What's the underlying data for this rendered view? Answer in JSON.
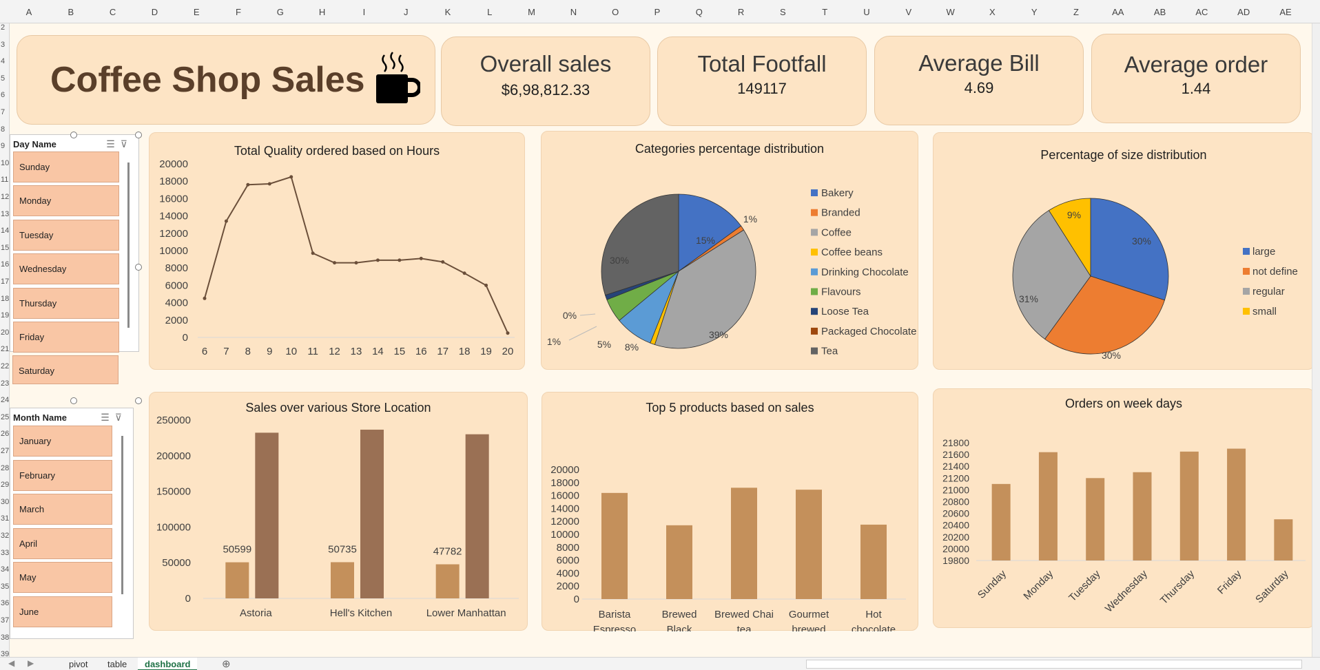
{
  "spreadsheet": {
    "columns": [
      "A",
      "B",
      "C",
      "D",
      "E",
      "F",
      "G",
      "H",
      "I",
      "J",
      "K",
      "L",
      "M",
      "N",
      "O",
      "P",
      "Q",
      "R",
      "S",
      "T",
      "U",
      "V",
      "W",
      "X",
      "Y",
      "Z",
      "AA",
      "AB",
      "AC",
      "AD",
      "AE"
    ],
    "rows": [
      "2",
      "3",
      "4",
      "5",
      "6",
      "7",
      "8",
      "9",
      "10",
      "11",
      "12",
      "13",
      "14",
      "15",
      "16",
      "17",
      "18",
      "19",
      "20",
      "21",
      "22",
      "23",
      "24",
      "25",
      "26",
      "27",
      "28",
      "29",
      "30",
      "31",
      "32",
      "33",
      "34",
      "35",
      "36",
      "37",
      "38",
      "39"
    ]
  },
  "header": {
    "title": "Coffee Shop Sales",
    "kpis": [
      {
        "label": "Overall sales",
        "value": "$6,98,812.33"
      },
      {
        "label": "Total Footfall",
        "value": "149117"
      },
      {
        "label": "Average Bill",
        "value": "4.69"
      },
      {
        "label": "Average order",
        "value": "1.44"
      }
    ]
  },
  "slicers": {
    "day": {
      "title": "Day Name",
      "items": [
        "Sunday",
        "Monday",
        "Tuesday",
        "Wednesday",
        "Thursday",
        "Friday",
        "Saturday"
      ]
    },
    "month": {
      "title": "Month Name",
      "items": [
        "January",
        "February",
        "March",
        "April",
        "May",
        "June"
      ]
    }
  },
  "tabs": [
    "pivot",
    "table",
    "dashboard"
  ],
  "active_tab": "dashboard",
  "colors": {
    "card_bg": "#fde4c5",
    "line": "#6b4f3a",
    "bar_light": "#c4905b",
    "bar_dark": "#9a7054",
    "slicer_item": "#f9c6a5"
  },
  "chart_data": [
    {
      "type": "line",
      "title": "Total Quality ordered based on Hours",
      "x": [
        6,
        7,
        8,
        9,
        10,
        11,
        12,
        13,
        14,
        15,
        16,
        17,
        18,
        19,
        20
      ],
      "y_ticks": [
        "20000",
        "18000",
        "16000",
        "14000",
        "12000",
        "10000",
        "8000",
        "6000",
        "4000",
        "2000",
        "0"
      ],
      "values": [
        4500,
        13400,
        17600,
        17700,
        18500,
        9700,
        8600,
        8600,
        8900,
        8900,
        9100,
        8700,
        7400,
        6000,
        500
      ],
      "ylim": [
        0,
        20000
      ]
    },
    {
      "type": "pie",
      "title": "Categories percentage distribution",
      "categories": [
        "Bakery",
        "Branded",
        "Coffee",
        "Coffee beans",
        "Drinking Chocolate",
        "Flavours",
        "Loose Tea",
        "Packaged Chocolate",
        "Tea"
      ],
      "values": [
        15,
        1,
        39,
        1,
        8,
        5,
        1,
        0,
        30
      ],
      "labels": [
        "15%",
        "1%",
        "39%",
        "1%",
        "8%",
        "5%",
        "1%",
        "0%",
        "30%"
      ],
      "colors": [
        "#4472c4",
        "#ed7d31",
        "#a5a5a5",
        "#ffc000",
        "#5b9bd5",
        "#70ad47",
        "#264478",
        "#9e480e",
        "#636363"
      ]
    },
    {
      "type": "pie",
      "title": "Percentage of size distribution",
      "categories": [
        "large",
        "not define",
        "regular",
        "small"
      ],
      "values": [
        30,
        30,
        31,
        9
      ],
      "labels": [
        "30%",
        "30%",
        "31%",
        "9%"
      ],
      "colors": [
        "#4472c4",
        "#ed7d31",
        "#a5a5a5",
        "#ffc000"
      ]
    },
    {
      "type": "bar",
      "title": "Sales over various Store Location",
      "categories": [
        "Astoria",
        "Hell's Kitchen",
        "Lower Manhattan"
      ],
      "series": [
        {
          "values": [
            50599,
            50735,
            47782
          ]
        },
        {
          "values": [
            232243,
            236511,
            230057
          ]
        }
      ],
      "data_labels": [
        "50599",
        "50735",
        "47782"
      ],
      "y_ticks": [
        "250000",
        "200000",
        "150000",
        "100000",
        "50000",
        "0"
      ],
      "ylim": [
        0,
        250000
      ]
    },
    {
      "type": "bar",
      "title": "Top 5 products based on sales",
      "categories": [
        "Barista Espresso",
        "Brewed Black tea",
        "Brewed Chai tea",
        "Gourmet brewed coffee",
        "Hot chocolate"
      ],
      "values": [
        16400,
        11400,
        17200,
        16900,
        11500
      ],
      "y_ticks": [
        "20000",
        "18000",
        "16000",
        "14000",
        "12000",
        "10000",
        "8000",
        "6000",
        "4000",
        "2000",
        "0"
      ],
      "ylim": [
        0,
        20000
      ]
    },
    {
      "type": "bar",
      "title": "Orders on week days",
      "categories": [
        "Sunday",
        "Monday",
        "Tuesday",
        "Wednesday",
        "Thursday",
        "Friday",
        "Saturday"
      ],
      "values": [
        21100,
        21640,
        21200,
        21300,
        21650,
        21700,
        20500
      ],
      "y_ticks": [
        "21800",
        "21600",
        "21400",
        "21200",
        "21000",
        "20800",
        "20600",
        "20400",
        "20200",
        "20000",
        "19800"
      ],
      "ylim": [
        19800,
        21800
      ]
    }
  ]
}
